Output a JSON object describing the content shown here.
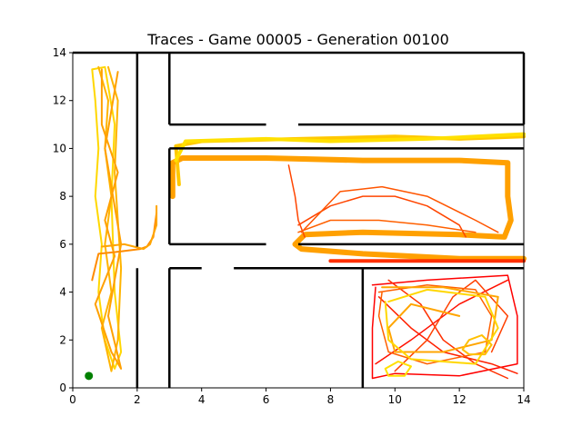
{
  "chart_data": {
    "type": "line",
    "title": "Traces - Game 00005 - Generation 00100",
    "xlabel": "",
    "ylabel": "",
    "xlim": [
      0,
      14
    ],
    "ylim": [
      0,
      14
    ],
    "x_ticks": [
      "0",
      "2",
      "4",
      "6",
      "8",
      "10",
      "12",
      "14"
    ],
    "y_ticks": [
      "0",
      "2",
      "4",
      "6",
      "8",
      "10",
      "12",
      "14"
    ],
    "grid": false,
    "legend": "none",
    "start_point": {
      "x": 0.5,
      "y": 0.5,
      "color": "#008000"
    },
    "walls": [
      [
        [
          2,
          0
        ],
        [
          2,
          5
        ]
      ],
      [
        [
          2,
          5.9
        ],
        [
          2,
          14
        ]
      ],
      [
        [
          3,
          0
        ],
        [
          3,
          5
        ]
      ],
      [
        [
          3,
          5
        ],
        [
          4,
          5
        ]
      ],
      [
        [
          5,
          5
        ],
        [
          14,
          5
        ]
      ],
      [
        [
          9,
          0
        ],
        [
          9,
          5
        ]
      ],
      [
        [
          3,
          14
        ],
        [
          3,
          11
        ]
      ],
      [
        [
          3,
          11
        ],
        [
          6,
          11
        ]
      ],
      [
        [
          7,
          11
        ],
        [
          14,
          11
        ]
      ],
      [
        [
          3,
          10
        ],
        [
          3,
          6
        ]
      ],
      [
        [
          3,
          10
        ],
        [
          14,
          10
        ]
      ],
      [
        [
          3,
          6
        ],
        [
          6,
          6
        ]
      ],
      [
        [
          7,
          6
        ],
        [
          14,
          6
        ]
      ],
      [
        [
          14,
          14
        ],
        [
          0,
          14
        ]
      ],
      [
        [
          14,
          14
        ],
        [
          14,
          11
        ]
      ]
    ],
    "series": [
      {
        "color": "#FFD700",
        "width": 2,
        "points": [
          [
            0.6,
            13.3
          ],
          [
            0.7,
            12.0
          ],
          [
            0.8,
            10.0
          ],
          [
            0.7,
            8.0
          ],
          [
            0.9,
            6.0
          ],
          [
            0.8,
            4.0
          ],
          [
            1.0,
            2.0
          ],
          [
            1.3,
            0.8
          ],
          [
            1.5,
            1.5
          ],
          [
            1.3,
            4.0
          ],
          [
            1.2,
            8.0
          ],
          [
            1.3,
            11.0
          ],
          [
            1.0,
            13.4
          ],
          [
            0.6,
            13.3
          ]
        ]
      },
      {
        "color": "#FFB400",
        "width": 2,
        "points": [
          [
            0.8,
            13.4
          ],
          [
            1.1,
            12.0
          ],
          [
            1.0,
            10.0
          ],
          [
            1.2,
            8.0
          ],
          [
            1.0,
            6.0
          ],
          [
            1.2,
            4.0
          ],
          [
            0.9,
            2.5
          ],
          [
            1.2,
            0.7
          ],
          [
            1.4,
            2.0
          ],
          [
            1.5,
            5.0
          ],
          [
            1.3,
            9.0
          ],
          [
            1.4,
            12.0
          ],
          [
            1.1,
            13.4
          ]
        ]
      },
      {
        "color": "#FFA000",
        "width": 2,
        "points": [
          [
            0.9,
            13.3
          ],
          [
            0.9,
            11.0
          ],
          [
            1.4,
            9.0
          ],
          [
            1.0,
            7.0
          ],
          [
            1.3,
            5.5
          ],
          [
            0.7,
            3.5
          ],
          [
            1.2,
            1.5
          ],
          [
            1.5,
            0.8
          ],
          [
            1.1,
            3.0
          ],
          [
            1.5,
            6.0
          ],
          [
            1.0,
            10.0
          ],
          [
            1.4,
            13.2
          ]
        ]
      },
      {
        "color": "#FF8C00",
        "width": 2,
        "points": [
          [
            0.6,
            4.5
          ],
          [
            0.8,
            5.6
          ],
          [
            1.5,
            5.7
          ],
          [
            2.1,
            5.8
          ],
          [
            2.3,
            5.9
          ],
          [
            2.5,
            6.3
          ],
          [
            2.6,
            7.3
          ]
        ]
      },
      {
        "color": "#FFA500",
        "width": 2,
        "points": [
          [
            0.9,
            5.9
          ],
          [
            1.6,
            6.0
          ],
          [
            2.2,
            5.8
          ],
          [
            2.4,
            6.0
          ],
          [
            2.6,
            6.8
          ],
          [
            2.6,
            7.6
          ]
        ]
      },
      {
        "color": "#FFA000",
        "width": 6,
        "points": [
          [
            3.1,
            8.0
          ],
          [
            3.1,
            9.4
          ],
          [
            3.4,
            9.6
          ],
          [
            6.0,
            9.6
          ],
          [
            9.0,
            9.5
          ],
          [
            12.0,
            9.5
          ],
          [
            13.5,
            9.4
          ],
          [
            13.5,
            8.0
          ],
          [
            13.6,
            7.0
          ],
          [
            13.4,
            6.3
          ],
          [
            12.0,
            6.4
          ],
          [
            9.0,
            6.5
          ],
          [
            7.2,
            6.4
          ],
          [
            6.9,
            6.0
          ],
          [
            7.1,
            5.8
          ],
          [
            9.0,
            5.6
          ],
          [
            12.0,
            5.4
          ],
          [
            14.0,
            5.4
          ]
        ]
      },
      {
        "color": "#FFC800",
        "width": 4,
        "points": [
          [
            3.3,
            8.5
          ],
          [
            3.2,
            10.1
          ],
          [
            4.0,
            10.3
          ],
          [
            7.0,
            10.4
          ],
          [
            10.0,
            10.5
          ],
          [
            12.0,
            10.4
          ],
          [
            14.0,
            10.5
          ]
        ]
      },
      {
        "color": "#FFE000",
        "width": 4,
        "points": [
          [
            3.2,
            9.5
          ],
          [
            3.5,
            10.3
          ],
          [
            6.0,
            10.4
          ],
          [
            8.0,
            10.3
          ],
          [
            11.0,
            10.4
          ],
          [
            14.0,
            10.6
          ]
        ]
      },
      {
        "color": "#FF4500",
        "width": 1.5,
        "points": [
          [
            6.7,
            9.3
          ],
          [
            6.9,
            8.0
          ],
          [
            7.0,
            7.0
          ],
          [
            7.2,
            6.3
          ]
        ]
      },
      {
        "color": "#FF4500",
        "width": 1.5,
        "points": [
          [
            7.0,
            6.8
          ],
          [
            8.0,
            7.6
          ],
          [
            9.0,
            8.0
          ],
          [
            10.0,
            8.0
          ],
          [
            11.0,
            7.6
          ],
          [
            12.0,
            6.8
          ],
          [
            12.2,
            6.3
          ]
        ]
      },
      {
        "color": "#FF5500",
        "width": 1.5,
        "points": [
          [
            7.1,
            6.5
          ],
          [
            8.3,
            8.2
          ],
          [
            9.6,
            8.4
          ],
          [
            11.0,
            8.0
          ],
          [
            12.5,
            7.0
          ],
          [
            13.2,
            6.5
          ]
        ]
      },
      {
        "color": "#FF6000",
        "width": 1.5,
        "points": [
          [
            7.0,
            6.5
          ],
          [
            8.0,
            7.0
          ],
          [
            9.5,
            7.0
          ],
          [
            11.0,
            6.8
          ],
          [
            12.5,
            6.5
          ]
        ]
      },
      {
        "color": "#FF3000",
        "width": 4,
        "points": [
          [
            8.0,
            5.3
          ],
          [
            10.0,
            5.3
          ],
          [
            12.0,
            5.3
          ],
          [
            14.0,
            5.3
          ]
        ]
      },
      {
        "color": "#FF0000",
        "width": 1.5,
        "points": [
          [
            9.3,
            4.3
          ],
          [
            11.0,
            4.5
          ],
          [
            13.5,
            4.7
          ],
          [
            13.8,
            3.0
          ],
          [
            13.8,
            1.0
          ],
          [
            12.0,
            0.5
          ],
          [
            10.0,
            0.6
          ],
          [
            9.3,
            0.4
          ],
          [
            9.3,
            2.5
          ],
          [
            9.4,
            4.2
          ]
        ]
      },
      {
        "color": "#FF2000",
        "width": 1.5,
        "points": [
          [
            9.5,
            3.8
          ],
          [
            10.5,
            2.5
          ],
          [
            11.5,
            1.5
          ],
          [
            13.0,
            1.0
          ],
          [
            13.8,
            0.6
          ]
        ]
      },
      {
        "color": "#FF1000",
        "width": 1.5,
        "points": [
          [
            9.4,
            1.0
          ],
          [
            10.5,
            2.0
          ],
          [
            12.0,
            3.5
          ],
          [
            13.5,
            4.5
          ]
        ]
      },
      {
        "color": "#FF3000",
        "width": 1.5,
        "points": [
          [
            9.8,
            4.5
          ],
          [
            10.8,
            3.5
          ],
          [
            11.5,
            2.0
          ],
          [
            12.5,
            1.0
          ],
          [
            13.5,
            0.4
          ]
        ]
      },
      {
        "color": "#FF4000",
        "width": 1.5,
        "points": [
          [
            10.0,
            0.7
          ],
          [
            11.0,
            2.0
          ],
          [
            11.8,
            3.8
          ],
          [
            12.5,
            4.5
          ],
          [
            13.5,
            3.0
          ],
          [
            13.0,
            1.5
          ]
        ]
      },
      {
        "color": "#FF6000",
        "width": 1.5,
        "points": [
          [
            9.5,
            4.0
          ],
          [
            11.0,
            4.3
          ],
          [
            12.5,
            4.1
          ],
          [
            13.0,
            3.0
          ],
          [
            12.8,
            1.5
          ],
          [
            11.0,
            1.0
          ],
          [
            9.8,
            1.5
          ],
          [
            9.5,
            3.0
          ],
          [
            9.6,
            4.0
          ]
        ]
      },
      {
        "color": "#FFA500",
        "width": 2,
        "points": [
          [
            9.6,
            4.2
          ],
          [
            11.5,
            4.2
          ],
          [
            13.2,
            3.8
          ],
          [
            13.0,
            2.0
          ],
          [
            11.5,
            1.5
          ],
          [
            10.0,
            1.5
          ],
          [
            9.8,
            2.5
          ],
          [
            10.5,
            3.5
          ],
          [
            12.0,
            3.0
          ]
        ]
      },
      {
        "color": "#FFD700",
        "width": 2,
        "points": [
          [
            9.7,
            3.6
          ],
          [
            9.8,
            2.0
          ],
          [
            10.5,
            1.2
          ],
          [
            12.5,
            1.0
          ],
          [
            13.2,
            2.5
          ],
          [
            12.8,
            3.8
          ],
          [
            11.0,
            4.1
          ],
          [
            9.8,
            3.6
          ]
        ]
      },
      {
        "color": "#FFC000",
        "width": 2,
        "points": [
          [
            12.1,
            1.6
          ],
          [
            12.3,
            2.0
          ],
          [
            12.7,
            2.2
          ],
          [
            13.0,
            1.8
          ],
          [
            12.8,
            1.4
          ],
          [
            12.3,
            1.4
          ],
          [
            12.1,
            1.6
          ]
        ]
      },
      {
        "color": "#FFE000",
        "width": 2,
        "points": [
          [
            9.7,
            0.8
          ],
          [
            10.1,
            1.1
          ],
          [
            10.5,
            0.9
          ],
          [
            10.3,
            0.5
          ],
          [
            9.8,
            0.5
          ],
          [
            9.7,
            0.8
          ]
        ]
      }
    ]
  }
}
